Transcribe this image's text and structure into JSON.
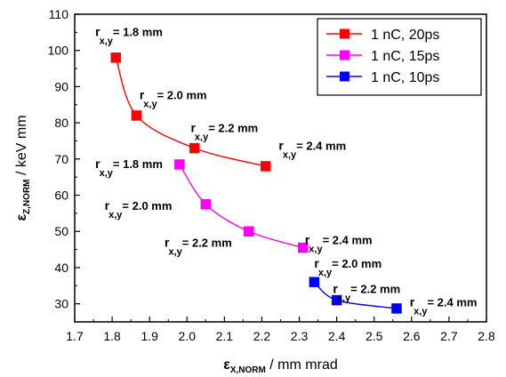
{
  "chart_data": {
    "type": "scatter",
    "title": "",
    "xlabel": {
      "symbol": "ε",
      "subscript": "X,NORM",
      "unit": " / mm mrad"
    },
    "ylabel": {
      "symbol": "ε",
      "subscript": "Z,NORM",
      "unit": " / keV mm"
    },
    "xlim": [
      1.7,
      2.8
    ],
    "ylim": [
      25,
      110
    ],
    "xticks": [
      1.7,
      1.8,
      1.9,
      2.0,
      2.1,
      2.2,
      2.3,
      2.4,
      2.5,
      2.6,
      2.7,
      2.8
    ],
    "xtick_labels": [
      "1.7",
      "1.8",
      "1.9",
      "2.0",
      "2.1",
      "2.2",
      "2.3",
      "2.4",
      "2.5",
      "2.6",
      "2.7",
      "2.8"
    ],
    "yticks": [
      30,
      40,
      50,
      60,
      70,
      80,
      90,
      100,
      110
    ],
    "ytick_labels": [
      "30",
      "40",
      "50",
      "60",
      "70",
      "80",
      "90",
      "100",
      "110"
    ],
    "grid": false,
    "legend": {
      "placement": "top-right",
      "entries": [
        "1 nC, 20ps",
        "1 nC, 15ps",
        "1 nC, 10ps"
      ]
    },
    "colors": {
      "20ps": "#ff0000",
      "15ps": "#ff00ff",
      "10ps": "#0000ff"
    },
    "series": [
      {
        "name": "1 nC, 20ps",
        "color": "#ff0000",
        "points": [
          {
            "x": 1.81,
            "y": 98
          },
          {
            "x": 1.865,
            "y": 82
          },
          {
            "x": 2.02,
            "y": 73
          },
          {
            "x": 2.21,
            "y": 68
          }
        ]
      },
      {
        "name": "1 nC, 15ps",
        "color": "#ff00ff",
        "points": [
          {
            "x": 1.98,
            "y": 68.5
          },
          {
            "x": 2.05,
            "y": 57.5
          },
          {
            "x": 2.165,
            "y": 50
          },
          {
            "x": 2.31,
            "y": 45.5
          }
        ]
      },
      {
        "name": "1 nC, 10ps",
        "color": "#0000ff",
        "points": [
          {
            "x": 2.34,
            "y": 36
          },
          {
            "x": 2.4,
            "y": 31
          },
          {
            "x": 2.56,
            "y": 28.7
          }
        ]
      }
    ],
    "annotations": [
      {
        "prefix": "r",
        "sub": "x,y",
        "value": "= 1.8 mm",
        "anchor_x": 1.755,
        "anchor_y": 104,
        "group": "20ps"
      },
      {
        "prefix": "r",
        "sub": "x,y",
        "value": "= 2.0 mm",
        "anchor_x": 1.873,
        "anchor_y": 86.5,
        "group": "20ps"
      },
      {
        "prefix": "r",
        "sub": "x,y",
        "value": "= 2.2 mm",
        "anchor_x": 2.01,
        "anchor_y": 77.5,
        "group": "20ps"
      },
      {
        "prefix": "r",
        "sub": "x,y",
        "value": "= 2.4 mm",
        "anchor_x": 2.245,
        "anchor_y": 72.5,
        "group": "20ps"
      },
      {
        "prefix": "r",
        "sub": "x,y",
        "value": "= 1.8 mm",
        "anchor_x": 1.755,
        "anchor_y": 67.5,
        "group": "15ps"
      },
      {
        "prefix": "r",
        "sub": "x,y",
        "value": "= 2.0 mm",
        "anchor_x": 1.78,
        "anchor_y": 56,
        "group": "15ps"
      },
      {
        "prefix": "r",
        "sub": "x,y",
        "value": "= 2.2 mm",
        "anchor_x": 1.94,
        "anchor_y": 45.7,
        "group": "15ps"
      },
      {
        "prefix": "r",
        "sub": "x,y",
        "value": "= 2.4 mm",
        "anchor_x": 2.315,
        "anchor_y": 46.5,
        "group": "15ps"
      },
      {
        "prefix": "r",
        "sub": "x,y",
        "value": "= 2.0 mm",
        "anchor_x": 2.34,
        "anchor_y": 40,
        "group": "10ps"
      },
      {
        "prefix": "r",
        "sub": "x,y",
        "value": "= 2.2 mm",
        "anchor_x": 2.39,
        "anchor_y": 33,
        "group": "10ps"
      },
      {
        "prefix": "r",
        "sub": "x,y",
        "value": "= 2.4 mm",
        "anchor_x": 2.595,
        "anchor_y": 29.3,
        "group": "10ps"
      }
    ]
  }
}
